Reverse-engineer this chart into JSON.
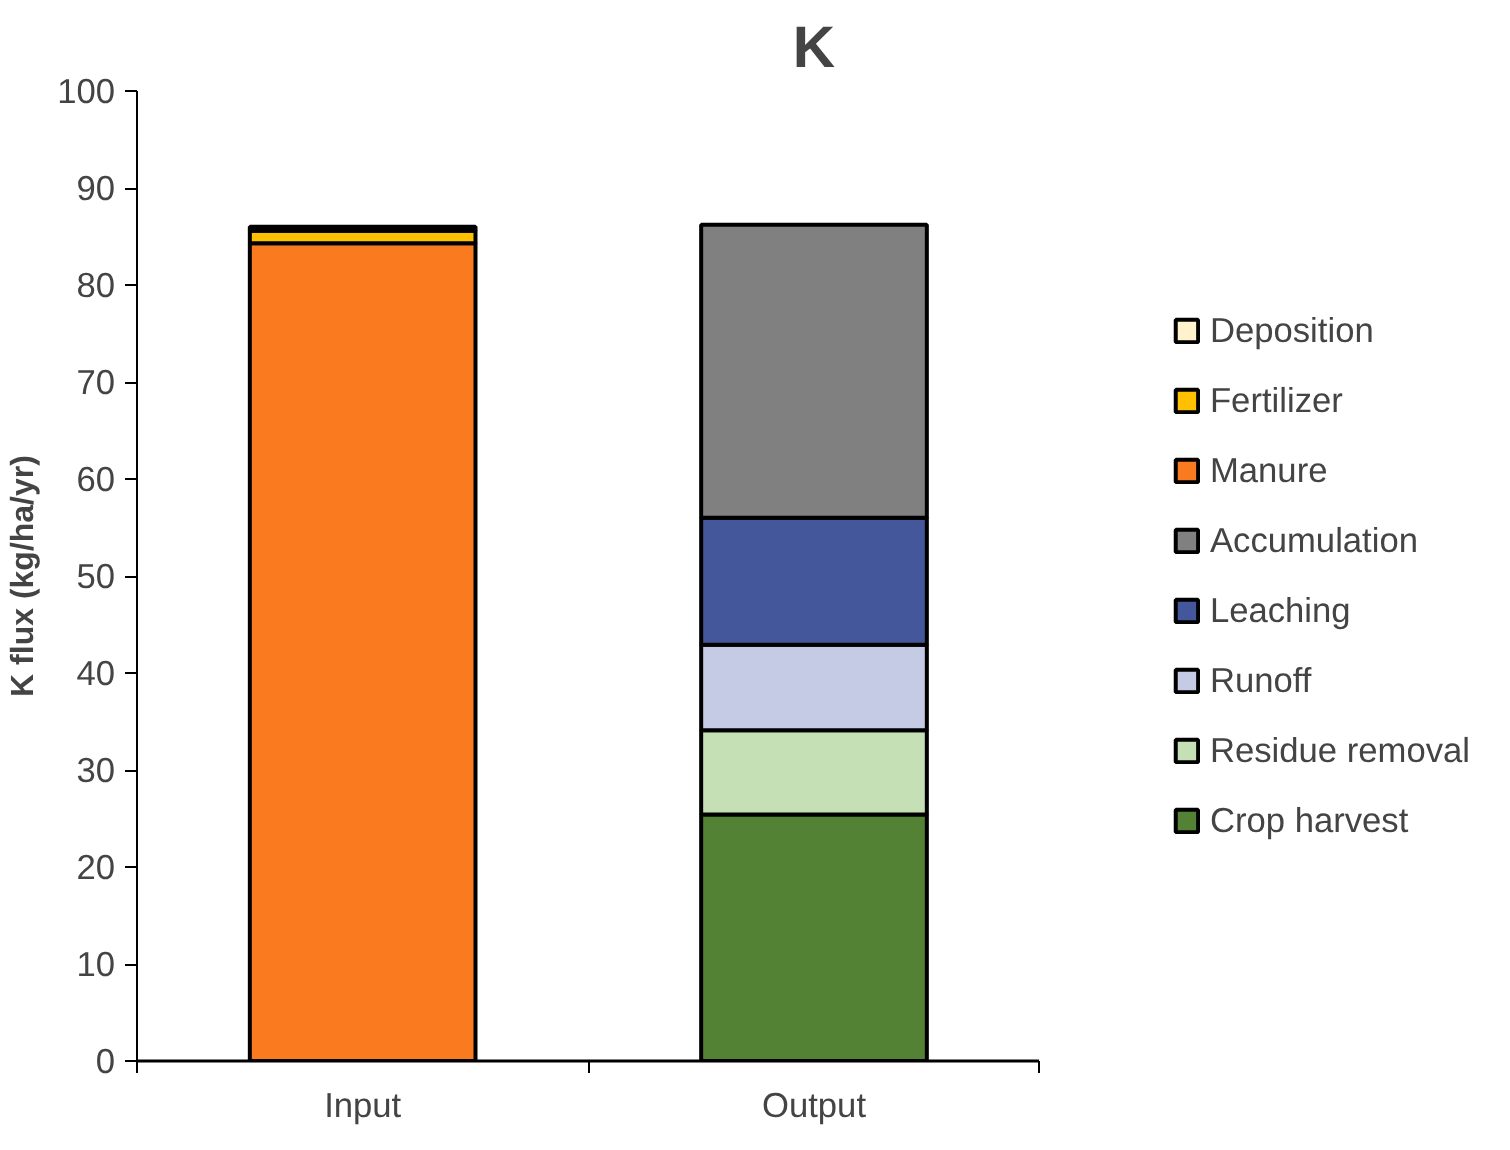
{
  "chart_data": {
    "type": "bar",
    "title": "K",
    "ylabel": "K flux (kg/ha/yr)",
    "categories": [
      "Input",
      "Output"
    ],
    "stacked": true,
    "series": [
      {
        "name": "Manure",
        "color": "#f97a1f",
        "values": [
          84.3,
          null
        ]
      },
      {
        "name": "Fertilizer",
        "color": "#ffc000",
        "values": [
          1.3,
          null
        ]
      },
      {
        "name": "Deposition",
        "color": "#fff2cc",
        "values": [
          0.4,
          null
        ]
      },
      {
        "name": "Crop harvest",
        "color": "#548235",
        "values": [
          null,
          25.4
        ]
      },
      {
        "name": "Residue removal",
        "color": "#c5e0b4",
        "values": [
          null,
          8.7
        ]
      },
      {
        "name": "Runoff",
        "color": "#c5cbe5",
        "values": [
          null,
          8.8
        ]
      },
      {
        "name": "Leaching",
        "color": "#44579b",
        "values": [
          null,
          13.1
        ]
      },
      {
        "name": "Accumulation",
        "color": "#808080",
        "values": [
          null,
          30.2
        ]
      }
    ],
    "ylim": [
      0,
      100
    ],
    "yticks": [
      0,
      10,
      20,
      30,
      40,
      50,
      60,
      70,
      80,
      90,
      100
    ],
    "grid": false,
    "legend": "right"
  }
}
